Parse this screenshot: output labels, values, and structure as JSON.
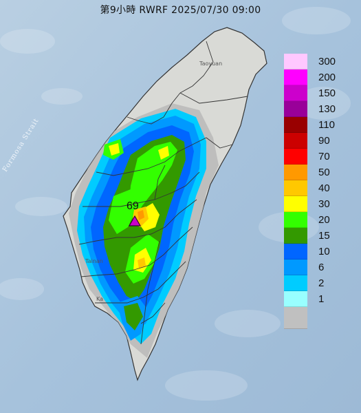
{
  "title": "第9小時  RWRF 2025/07/30 09:00",
  "map_labels": {
    "strait": "Formosa Strait",
    "taoyuan": "Taoyuan",
    "tainan": "Tainan",
    "kaohsiung": "Ka"
  },
  "peak": {
    "value": "69",
    "marker": "purple-triangle"
  },
  "legend": {
    "items": [
      {
        "label": "300",
        "color": "#ffc8ff"
      },
      {
        "label": "200",
        "color": "#ff00ff"
      },
      {
        "label": "150",
        "color": "#cc00cc"
      },
      {
        "label": "130",
        "color": "#990099"
      },
      {
        "label": "110",
        "color": "#990000"
      },
      {
        "label": "90",
        "color": "#cc0000"
      },
      {
        "label": "70",
        "color": "#ff0000"
      },
      {
        "label": "50",
        "color": "#ff9900"
      },
      {
        "label": "40",
        "color": "#ffc800"
      },
      {
        "label": "30",
        "color": "#ffff00"
      },
      {
        "label": "20",
        "color": "#33ff00"
      },
      {
        "label": "15",
        "color": "#339900"
      },
      {
        "label": "10",
        "color": "#0066ff"
      },
      {
        "label": "6",
        "color": "#0099ff"
      },
      {
        "label": "2",
        "color": "#00ccff"
      },
      {
        "label": "1",
        "color": "#99ffff"
      },
      {
        "label": "",
        "color": "#c0c0c0"
      }
    ]
  },
  "colors": {
    "sea": "#a9c4dc",
    "land": "#d9dad6",
    "boundary": "#333333"
  }
}
